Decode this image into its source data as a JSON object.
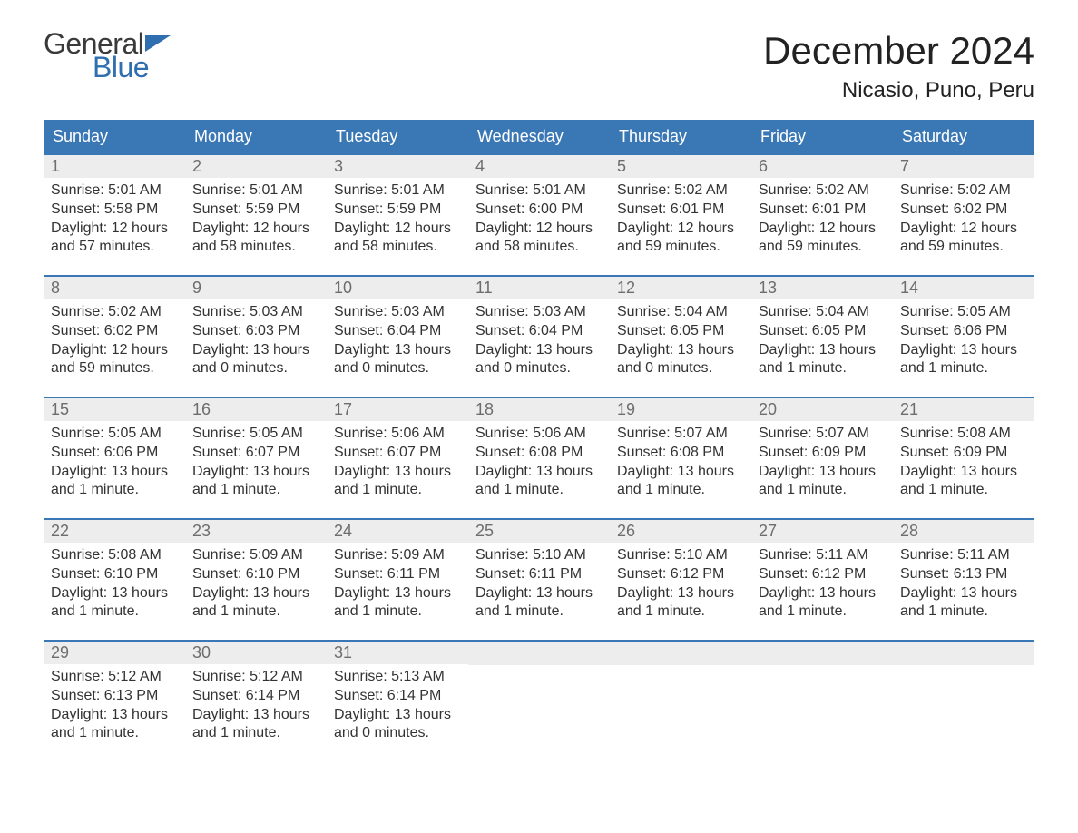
{
  "brand": {
    "part1": "General",
    "part2": "Blue",
    "flag_color": "#2f6fb0"
  },
  "title": "December 2024",
  "location": "Nicasio, Puno, Peru",
  "colors": {
    "header_bg": "#3a77b5",
    "header_text": "#ffffff",
    "daynum_bg": "#ededed",
    "daynum_text": "#6d6d6d",
    "body_text": "#333333",
    "rule": "#3a77b5",
    "page_bg": "#ffffff"
  },
  "typography": {
    "month_title_fontsize": 42,
    "location_fontsize": 24,
    "weekday_fontsize": 18,
    "daynum_fontsize": 18,
    "body_fontsize": 16
  },
  "weekdays": [
    "Sunday",
    "Monday",
    "Tuesday",
    "Wednesday",
    "Thursday",
    "Friday",
    "Saturday"
  ],
  "weeks": [
    [
      {
        "n": "1",
        "sunrise": "Sunrise: 5:01 AM",
        "sunset": "Sunset: 5:58 PM",
        "daylight1": "Daylight: 12 hours",
        "daylight2": "and 57 minutes."
      },
      {
        "n": "2",
        "sunrise": "Sunrise: 5:01 AM",
        "sunset": "Sunset: 5:59 PM",
        "daylight1": "Daylight: 12 hours",
        "daylight2": "and 58 minutes."
      },
      {
        "n": "3",
        "sunrise": "Sunrise: 5:01 AM",
        "sunset": "Sunset: 5:59 PM",
        "daylight1": "Daylight: 12 hours",
        "daylight2": "and 58 minutes."
      },
      {
        "n": "4",
        "sunrise": "Sunrise: 5:01 AM",
        "sunset": "Sunset: 6:00 PM",
        "daylight1": "Daylight: 12 hours",
        "daylight2": "and 58 minutes."
      },
      {
        "n": "5",
        "sunrise": "Sunrise: 5:02 AM",
        "sunset": "Sunset: 6:01 PM",
        "daylight1": "Daylight: 12 hours",
        "daylight2": "and 59 minutes."
      },
      {
        "n": "6",
        "sunrise": "Sunrise: 5:02 AM",
        "sunset": "Sunset: 6:01 PM",
        "daylight1": "Daylight: 12 hours",
        "daylight2": "and 59 minutes."
      },
      {
        "n": "7",
        "sunrise": "Sunrise: 5:02 AM",
        "sunset": "Sunset: 6:02 PM",
        "daylight1": "Daylight: 12 hours",
        "daylight2": "and 59 minutes."
      }
    ],
    [
      {
        "n": "8",
        "sunrise": "Sunrise: 5:02 AM",
        "sunset": "Sunset: 6:02 PM",
        "daylight1": "Daylight: 12 hours",
        "daylight2": "and 59 minutes."
      },
      {
        "n": "9",
        "sunrise": "Sunrise: 5:03 AM",
        "sunset": "Sunset: 6:03 PM",
        "daylight1": "Daylight: 13 hours",
        "daylight2": "and 0 minutes."
      },
      {
        "n": "10",
        "sunrise": "Sunrise: 5:03 AM",
        "sunset": "Sunset: 6:04 PM",
        "daylight1": "Daylight: 13 hours",
        "daylight2": "and 0 minutes."
      },
      {
        "n": "11",
        "sunrise": "Sunrise: 5:03 AM",
        "sunset": "Sunset: 6:04 PM",
        "daylight1": "Daylight: 13 hours",
        "daylight2": "and 0 minutes."
      },
      {
        "n": "12",
        "sunrise": "Sunrise: 5:04 AM",
        "sunset": "Sunset: 6:05 PM",
        "daylight1": "Daylight: 13 hours",
        "daylight2": "and 0 minutes."
      },
      {
        "n": "13",
        "sunrise": "Sunrise: 5:04 AM",
        "sunset": "Sunset: 6:05 PM",
        "daylight1": "Daylight: 13 hours",
        "daylight2": "and 1 minute."
      },
      {
        "n": "14",
        "sunrise": "Sunrise: 5:05 AM",
        "sunset": "Sunset: 6:06 PM",
        "daylight1": "Daylight: 13 hours",
        "daylight2": "and 1 minute."
      }
    ],
    [
      {
        "n": "15",
        "sunrise": "Sunrise: 5:05 AM",
        "sunset": "Sunset: 6:06 PM",
        "daylight1": "Daylight: 13 hours",
        "daylight2": "and 1 minute."
      },
      {
        "n": "16",
        "sunrise": "Sunrise: 5:05 AM",
        "sunset": "Sunset: 6:07 PM",
        "daylight1": "Daylight: 13 hours",
        "daylight2": "and 1 minute."
      },
      {
        "n": "17",
        "sunrise": "Sunrise: 5:06 AM",
        "sunset": "Sunset: 6:07 PM",
        "daylight1": "Daylight: 13 hours",
        "daylight2": "and 1 minute."
      },
      {
        "n": "18",
        "sunrise": "Sunrise: 5:06 AM",
        "sunset": "Sunset: 6:08 PM",
        "daylight1": "Daylight: 13 hours",
        "daylight2": "and 1 minute."
      },
      {
        "n": "19",
        "sunrise": "Sunrise: 5:07 AM",
        "sunset": "Sunset: 6:08 PM",
        "daylight1": "Daylight: 13 hours",
        "daylight2": "and 1 minute."
      },
      {
        "n": "20",
        "sunrise": "Sunrise: 5:07 AM",
        "sunset": "Sunset: 6:09 PM",
        "daylight1": "Daylight: 13 hours",
        "daylight2": "and 1 minute."
      },
      {
        "n": "21",
        "sunrise": "Sunrise: 5:08 AM",
        "sunset": "Sunset: 6:09 PM",
        "daylight1": "Daylight: 13 hours",
        "daylight2": "and 1 minute."
      }
    ],
    [
      {
        "n": "22",
        "sunrise": "Sunrise: 5:08 AM",
        "sunset": "Sunset: 6:10 PM",
        "daylight1": "Daylight: 13 hours",
        "daylight2": "and 1 minute."
      },
      {
        "n": "23",
        "sunrise": "Sunrise: 5:09 AM",
        "sunset": "Sunset: 6:10 PM",
        "daylight1": "Daylight: 13 hours",
        "daylight2": "and 1 minute."
      },
      {
        "n": "24",
        "sunrise": "Sunrise: 5:09 AM",
        "sunset": "Sunset: 6:11 PM",
        "daylight1": "Daylight: 13 hours",
        "daylight2": "and 1 minute."
      },
      {
        "n": "25",
        "sunrise": "Sunrise: 5:10 AM",
        "sunset": "Sunset: 6:11 PM",
        "daylight1": "Daylight: 13 hours",
        "daylight2": "and 1 minute."
      },
      {
        "n": "26",
        "sunrise": "Sunrise: 5:10 AM",
        "sunset": "Sunset: 6:12 PM",
        "daylight1": "Daylight: 13 hours",
        "daylight2": "and 1 minute."
      },
      {
        "n": "27",
        "sunrise": "Sunrise: 5:11 AM",
        "sunset": "Sunset: 6:12 PM",
        "daylight1": "Daylight: 13 hours",
        "daylight2": "and 1 minute."
      },
      {
        "n": "28",
        "sunrise": "Sunrise: 5:11 AM",
        "sunset": "Sunset: 6:13 PM",
        "daylight1": "Daylight: 13 hours",
        "daylight2": "and 1 minute."
      }
    ],
    [
      {
        "n": "29",
        "sunrise": "Sunrise: 5:12 AM",
        "sunset": "Sunset: 6:13 PM",
        "daylight1": "Daylight: 13 hours",
        "daylight2": "and 1 minute."
      },
      {
        "n": "30",
        "sunrise": "Sunrise: 5:12 AM",
        "sunset": "Sunset: 6:14 PM",
        "daylight1": "Daylight: 13 hours",
        "daylight2": "and 1 minute."
      },
      {
        "n": "31",
        "sunrise": "Sunrise: 5:13 AM",
        "sunset": "Sunset: 6:14 PM",
        "daylight1": "Daylight: 13 hours",
        "daylight2": "and 0 minutes."
      },
      {
        "empty": true
      },
      {
        "empty": true
      },
      {
        "empty": true
      },
      {
        "empty": true
      }
    ]
  ]
}
